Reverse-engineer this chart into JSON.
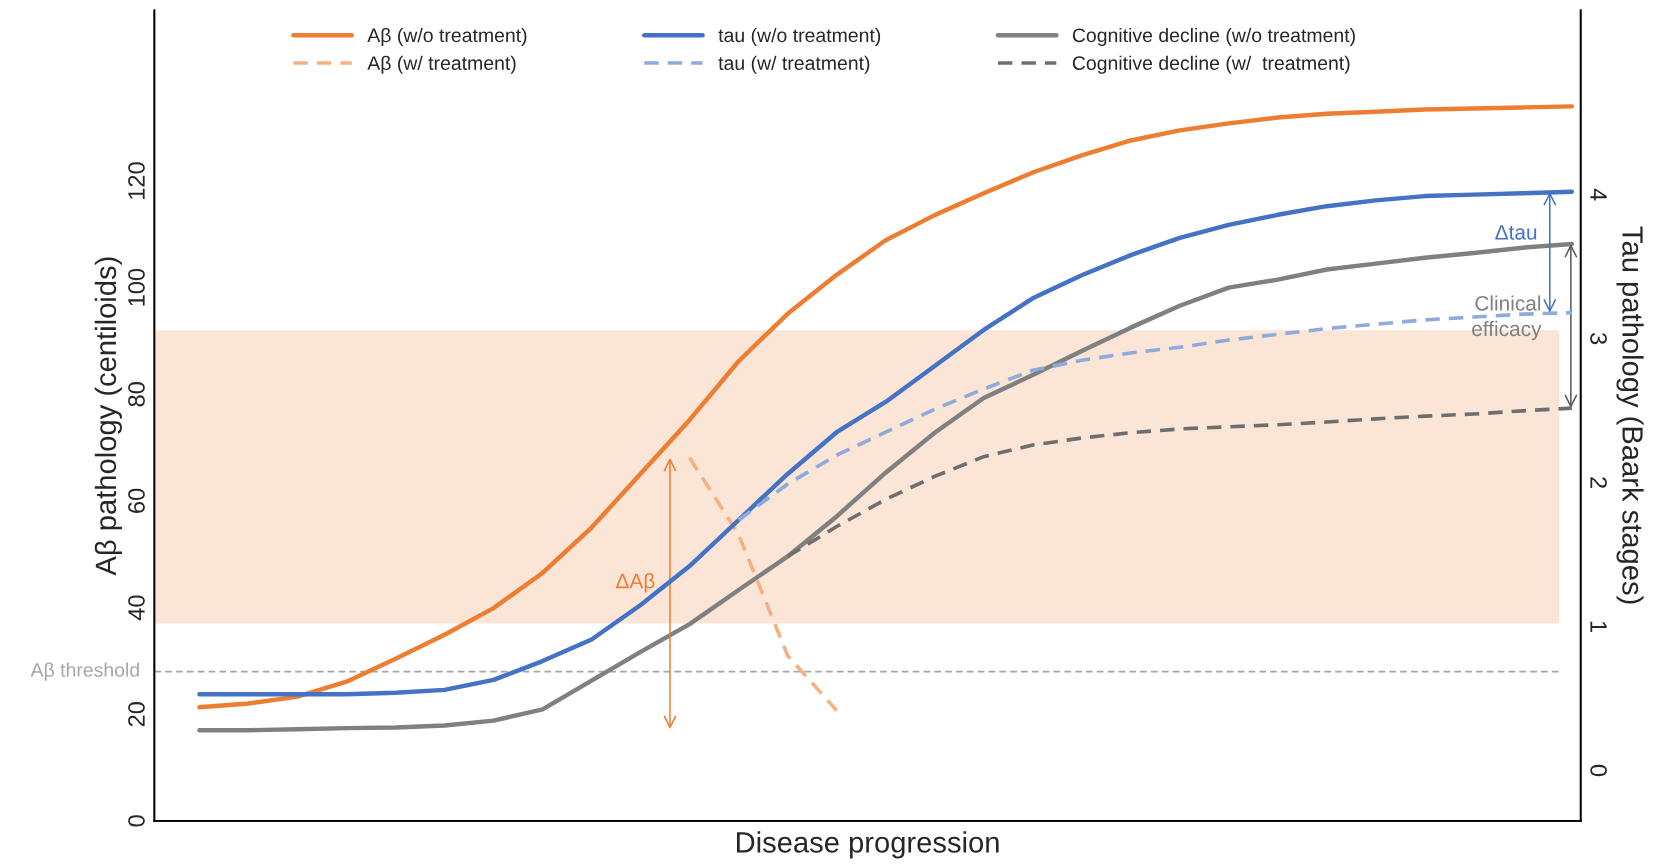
{
  "chart_data": {
    "type": "line",
    "categories": [
      null,
      null,
      null,
      null,
      null,
      null,
      null,
      null,
      null,
      null,
      null,
      null,
      null,
      null,
      null,
      null,
      null,
      null,
      null,
      null,
      null,
      null,
      null,
      null,
      null,
      null,
      null,
      null,
      null
    ],
    "series": [
      {
        "name": "Aβ (w/o treatment)",
        "color": "#ed7d31",
        "line_style": "solid",
        "axis": "y",
        "values": [
          21.3,
          22.0,
          23.3,
          26.1,
          30.4,
          34.9,
          39.9,
          46.5,
          55.0,
          65.1,
          75.2,
          86.2,
          95.1,
          102.4,
          108.9,
          113.6,
          117.7,
          121.6,
          124.8,
          127.6,
          129.5,
          130.8,
          131.9,
          132.6,
          133.0,
          133.4,
          133.6,
          133.8,
          134.0
        ]
      },
      {
        "name": "Aβ (w/ treatment)",
        "color": "#f4b183",
        "line_style": "dashed",
        "axis": "y",
        "values": [
          null,
          null,
          null,
          null,
          null,
          null,
          null,
          null,
          null,
          null,
          68.1,
          53.7,
          31.0,
          20.7,
          null,
          null,
          null,
          null,
          null,
          null,
          null,
          null,
          null,
          null,
          null,
          null,
          null,
          null,
          null
        ]
      },
      {
        "name": "tau (w/o treatment)",
        "color": "#4472c4",
        "line_style": "solid",
        "axis": "y2",
        "values": [
          0.53,
          0.53,
          0.53,
          0.53,
          0.54,
          0.56,
          0.63,
          0.76,
          0.91,
          1.15,
          1.42,
          1.74,
          2.06,
          2.35,
          2.56,
          2.81,
          3.06,
          3.28,
          3.44,
          3.58,
          3.7,
          3.79,
          3.86,
          3.92,
          3.96,
          3.99,
          4.0,
          4.01,
          4.02
        ]
      },
      {
        "name": "tau (w/ treatment)",
        "color": "#8faadc",
        "line_style": "dashed",
        "axis": "y2",
        "values": [
          null,
          null,
          null,
          null,
          null,
          null,
          null,
          null,
          null,
          null,
          null,
          1.74,
          1.99,
          2.19,
          2.35,
          2.51,
          2.65,
          2.78,
          2.85,
          2.9,
          2.94,
          2.99,
          3.03,
          3.07,
          3.1,
          3.13,
          3.15,
          3.17,
          3.18
        ]
      },
      {
        "name": "Cognitive decline (w/o treatment)",
        "color": "#808080",
        "line_style": "solid",
        "axis": "y",
        "values": [
          17.0,
          17.0,
          17.2,
          17.4,
          17.5,
          17.9,
          18.8,
          20.9,
          26.3,
          31.7,
          36.9,
          43.3,
          49.6,
          57.1,
          65.3,
          72.8,
          79.3,
          83.6,
          88.1,
          92.5,
          96.6,
          100.0,
          101.5,
          103.4,
          104.5,
          105.6,
          106.5,
          107.5,
          108.2
        ]
      },
      {
        "name": "Cognitive decline (w/  treatment)",
        "color": "#6e6e6e",
        "line_style": "dashed",
        "axis": "y",
        "values": [
          null,
          null,
          null,
          null,
          null,
          null,
          null,
          null,
          null,
          null,
          null,
          null,
          49.6,
          55.2,
          60.3,
          64.6,
          68.3,
          70.5,
          71.8,
          72.8,
          73.5,
          73.9,
          74.3,
          74.8,
          75.4,
          75.9,
          76.3,
          76.9,
          77.4
        ]
      }
    ],
    "xlabel": "Disease progression",
    "ylabel": "Aβ pathology (centiloids)",
    "y2label": "Tau pathology (Baark stages)",
    "ylim": [
      0,
      152
    ],
    "yticks": [
      0,
      20,
      40,
      60,
      80,
      100,
      120
    ],
    "y2lim": [
      -0.35,
      5.28
    ],
    "y2ticks": [
      0,
      1,
      2,
      3,
      4
    ],
    "ref_lines": [
      {
        "axis": "y",
        "value": 28,
        "label": "Aβ threshold",
        "color": "#a6a6a6",
        "line_style": "dashed"
      }
    ],
    "bands": [
      {
        "axis": "y",
        "from": 37,
        "to": 92,
        "color": "#fbe5d6"
      }
    ],
    "annotations": [
      "ΔAβ",
      "Δtau",
      "Clinical\nefficacy"
    ],
    "legend": "top",
    "grid": false,
    "marker": "none"
  }
}
